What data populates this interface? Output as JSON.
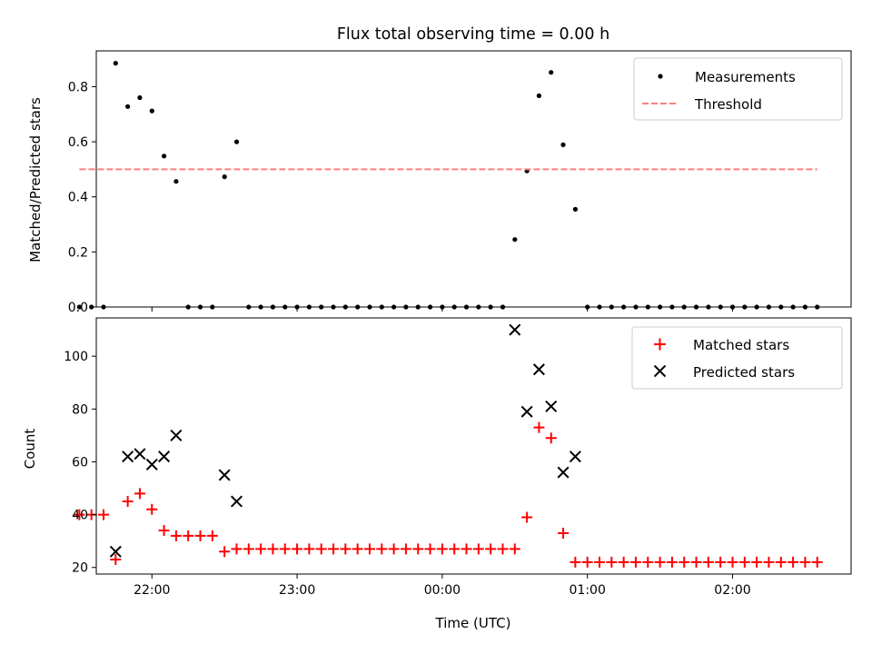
{
  "chart_data": [
    {
      "type": "scatter",
      "title": "Flux total observing time = 0.00 h",
      "xlabel": "",
      "ylabel": "Matched/Predicted stars",
      "x_type": "time_utc",
      "xlim": [
        "21:37",
        "02:49"
      ],
      "ylim": [
        0,
        0.93
      ],
      "yticks": [
        0.0,
        0.2,
        0.4,
        0.6,
        0.8
      ],
      "ytick_labels": [
        "0.0",
        "0.2",
        "0.4",
        "0.6",
        "0.8"
      ],
      "xticks": [
        "22:00",
        "23:00",
        "00:00",
        "01:00",
        "02:00"
      ],
      "xtick_labels_visible": false,
      "grid": false,
      "legend": {
        "placement": "upper right",
        "entries": [
          "Measurements",
          "Threshold"
        ]
      },
      "series": [
        {
          "name": "Measurements",
          "marker": "dot",
          "color": "#000000",
          "points": [
            [
              "21:30",
              0.0
            ],
            [
              "21:35",
              0.0
            ],
            [
              "21:40",
              0.0
            ],
            [
              "21:45",
              0.885
            ],
            [
              "21:50",
              0.728
            ],
            [
              "21:55",
              0.76
            ],
            [
              "22:00",
              0.712
            ],
            [
              "22:05",
              0.548
            ],
            [
              "22:10",
              0.456
            ],
            [
              "22:15",
              0.0
            ],
            [
              "22:20",
              0.0
            ],
            [
              "22:25",
              0.0
            ],
            [
              "22:30",
              0.473
            ],
            [
              "22:35",
              0.6
            ],
            [
              "22:40",
              0.0
            ],
            [
              "22:45",
              0.0
            ],
            [
              "22:50",
              0.0
            ],
            [
              "22:55",
              0.0
            ],
            [
              "23:00",
              0.0
            ],
            [
              "23:05",
              0.0
            ],
            [
              "23:10",
              0.0
            ],
            [
              "23:15",
              0.0
            ],
            [
              "23:20",
              0.0
            ],
            [
              "23:25",
              0.0
            ],
            [
              "23:30",
              0.0
            ],
            [
              "23:35",
              0.0
            ],
            [
              "23:40",
              0.0
            ],
            [
              "23:45",
              0.0
            ],
            [
              "23:50",
              0.0
            ],
            [
              "23:55",
              0.0
            ],
            [
              "00:00",
              0.0
            ],
            [
              "00:05",
              0.0
            ],
            [
              "00:10",
              0.0
            ],
            [
              "00:15",
              0.0
            ],
            [
              "00:20",
              0.0
            ],
            [
              "00:25",
              0.0
            ],
            [
              "00:30",
              0.245
            ],
            [
              "00:35",
              0.494
            ],
            [
              "00:40",
              0.767
            ],
            [
              "00:45",
              0.852
            ],
            [
              "00:50",
              0.589
            ],
            [
              "00:55",
              0.355
            ],
            [
              "01:00",
              0.0
            ],
            [
              "01:05",
              0.0
            ],
            [
              "01:10",
              0.0
            ],
            [
              "01:15",
              0.0
            ],
            [
              "01:20",
              0.0
            ],
            [
              "01:25",
              0.0
            ],
            [
              "01:30",
              0.0
            ],
            [
              "01:35",
              0.0
            ],
            [
              "01:40",
              0.0
            ],
            [
              "01:45",
              0.0
            ],
            [
              "01:50",
              0.0
            ],
            [
              "01:55",
              0.0
            ],
            [
              "02:00",
              0.0
            ],
            [
              "02:05",
              0.0
            ],
            [
              "02:10",
              0.0
            ],
            [
              "02:15",
              0.0
            ],
            [
              "02:20",
              0.0
            ],
            [
              "02:25",
              0.0
            ],
            [
              "02:30",
              0.0
            ],
            [
              "02:35",
              0.0
            ]
          ]
        },
        {
          "name": "Threshold",
          "style": "dashed-line",
          "color": "#ff7f7f",
          "points": [
            [
              "21:30",
              0.5
            ],
            [
              "02:35",
              0.5
            ]
          ]
        }
      ]
    },
    {
      "type": "scatter",
      "title": "",
      "xlabel": "Time (UTC)",
      "ylabel": "Count",
      "x_type": "time_utc",
      "xlim": [
        "21:37",
        "02:49"
      ],
      "ylim": [
        17.5,
        114.5
      ],
      "yticks": [
        20,
        40,
        60,
        80,
        100
      ],
      "ytick_labels": [
        "20",
        "40",
        "60",
        "80",
        "100"
      ],
      "xticks": [
        "22:00",
        "23:00",
        "00:00",
        "01:00",
        "02:00"
      ],
      "xtick_labels": [
        "22:00",
        "23:00",
        "00:00",
        "01:00",
        "02:00"
      ],
      "grid": false,
      "legend": {
        "placement": "upper right",
        "entries": [
          "Matched stars",
          "Predicted stars"
        ]
      },
      "series": [
        {
          "name": "Matched stars",
          "marker": "plus",
          "color": "#ff0000",
          "points": [
            [
              "21:30",
              40
            ],
            [
              "21:35",
              40
            ],
            [
              "21:40",
              40
            ],
            [
              "21:45",
              23
            ],
            [
              "21:50",
              45
            ],
            [
              "21:55",
              48
            ],
            [
              "22:00",
              42
            ],
            [
              "22:05",
              34
            ],
            [
              "22:10",
              32
            ],
            [
              "22:15",
              32
            ],
            [
              "22:20",
              32
            ],
            [
              "22:25",
              32
            ],
            [
              "22:30",
              26
            ],
            [
              "22:35",
              27
            ],
            [
              "22:40",
              27
            ],
            [
              "22:45",
              27
            ],
            [
              "22:50",
              27
            ],
            [
              "22:55",
              27
            ],
            [
              "23:00",
              27
            ],
            [
              "23:05",
              27
            ],
            [
              "23:10",
              27
            ],
            [
              "23:15",
              27
            ],
            [
              "23:20",
              27
            ],
            [
              "23:25",
              27
            ],
            [
              "23:30",
              27
            ],
            [
              "23:35",
              27
            ],
            [
              "23:40",
              27
            ],
            [
              "23:45",
              27
            ],
            [
              "23:50",
              27
            ],
            [
              "23:55",
              27
            ],
            [
              "00:00",
              27
            ],
            [
              "00:05",
              27
            ],
            [
              "00:10",
              27
            ],
            [
              "00:15",
              27
            ],
            [
              "00:20",
              27
            ],
            [
              "00:25",
              27
            ],
            [
              "00:30",
              27
            ],
            [
              "00:35",
              39
            ],
            [
              "00:40",
              73
            ],
            [
              "00:45",
              69
            ],
            [
              "00:50",
              33
            ],
            [
              "00:55",
              22
            ],
            [
              "01:00",
              22
            ],
            [
              "01:05",
              22
            ],
            [
              "01:10",
              22
            ],
            [
              "01:15",
              22
            ],
            [
              "01:20",
              22
            ],
            [
              "01:25",
              22
            ],
            [
              "01:30",
              22
            ],
            [
              "01:35",
              22
            ],
            [
              "01:40",
              22
            ],
            [
              "01:45",
              22
            ],
            [
              "01:50",
              22
            ],
            [
              "01:55",
              22
            ],
            [
              "02:00",
              22
            ],
            [
              "02:05",
              22
            ],
            [
              "02:10",
              22
            ],
            [
              "02:15",
              22
            ],
            [
              "02:20",
              22
            ],
            [
              "02:25",
              22
            ],
            [
              "02:30",
              22
            ],
            [
              "02:35",
              22
            ]
          ]
        },
        {
          "name": "Predicted stars",
          "marker": "x",
          "color": "#000000",
          "points": [
            [
              "21:45",
              26
            ],
            [
              "21:50",
              62
            ],
            [
              "21:55",
              63
            ],
            [
              "22:00",
              59
            ],
            [
              "22:05",
              62
            ],
            [
              "22:10",
              70
            ],
            [
              "22:30",
              55
            ],
            [
              "22:35",
              45
            ],
            [
              "00:30",
              110
            ],
            [
              "00:35",
              79
            ],
            [
              "00:40",
              95
            ],
            [
              "00:45",
              81
            ],
            [
              "00:50",
              56
            ],
            [
              "00:55",
              62
            ]
          ]
        }
      ]
    }
  ]
}
